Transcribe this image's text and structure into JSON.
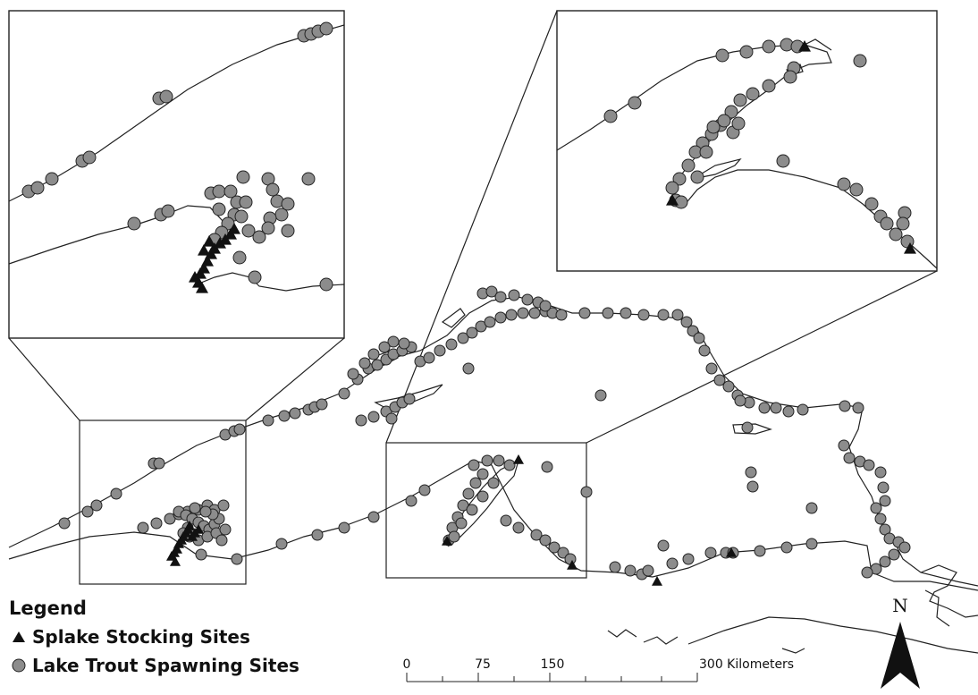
{
  "legend": {
    "title": "Legend",
    "items": [
      {
        "label": "Splake Stocking Sites",
        "symbol": "triangle-icon",
        "color": "#111111"
      },
      {
        "label": "Lake Trout Spawning Sites",
        "symbol": "circle-icon",
        "color": "#8c8c8c"
      }
    ]
  },
  "scale_bar": {
    "tick_labels": [
      "0",
      "75",
      "150",
      "300 Kilometers"
    ]
  },
  "north_arrow": {
    "label": "N"
  },
  "colors": {
    "site_fill": "#8c8c8c",
    "site_stroke": "#222222",
    "stocking": "#111111",
    "shoreline": "#222222"
  }
}
